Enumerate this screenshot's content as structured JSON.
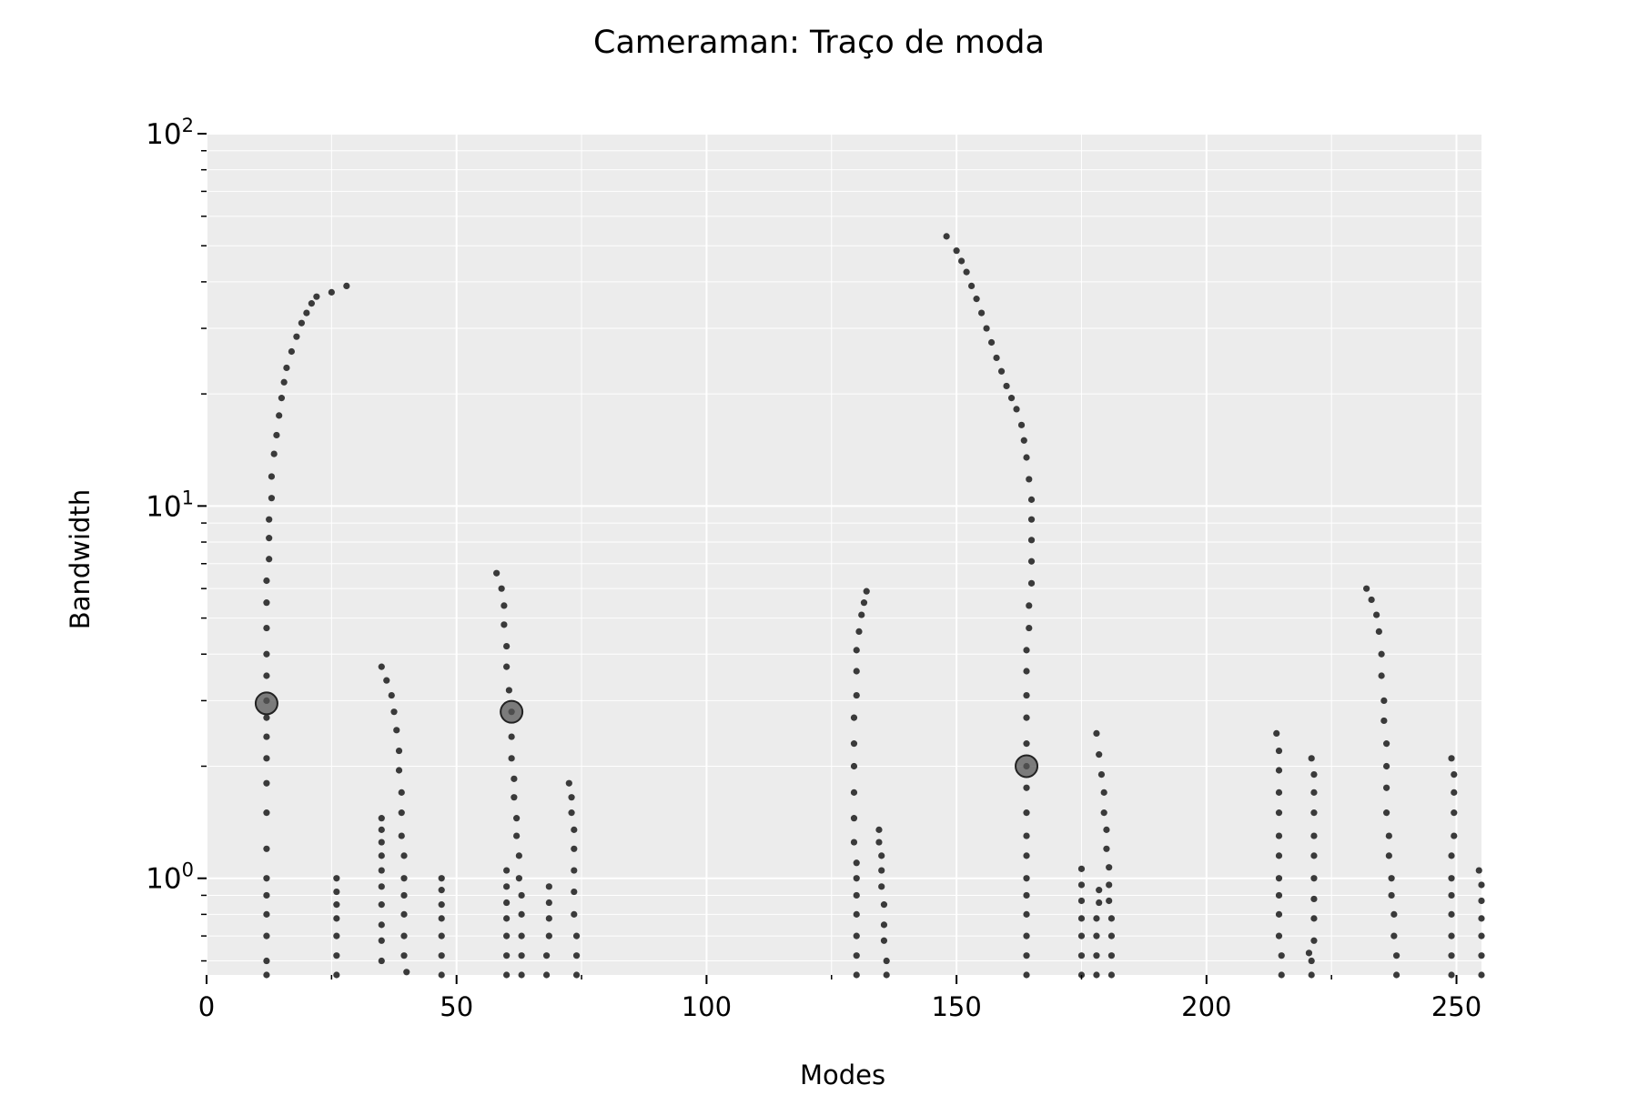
{
  "chart_data": {
    "type": "scatter",
    "title": "Cameraman: Traço de moda",
    "xlabel": "Modes",
    "ylabel": "Bandwidth",
    "xlim": [
      0,
      255
    ],
    "ylim": [
      0.55,
      100
    ],
    "y_scale": "log",
    "grid": true,
    "legend": "none",
    "x_ticks": [
      0,
      50,
      100,
      150,
      200,
      250
    ],
    "y_ticks": [
      {
        "value": 1,
        "base": "10",
        "exp": "0"
      },
      {
        "value": 10,
        "base": "10",
        "exp": "1"
      },
      {
        "value": 100,
        "base": "10",
        "exp": "2"
      }
    ],
    "colors": {
      "points": "#3a3a3a",
      "highlight": "#555555",
      "background": "#ececec",
      "grid": "#ffffff"
    },
    "traces": [
      {
        "pts": [
          [
            12,
            0.55
          ],
          [
            12,
            0.6
          ],
          [
            12,
            0.7
          ],
          [
            12,
            0.8
          ],
          [
            12,
            0.9
          ],
          [
            12,
            1.0
          ],
          [
            12,
            1.2
          ],
          [
            12,
            1.5
          ],
          [
            12,
            1.8
          ],
          [
            12,
            2.1
          ],
          [
            12,
            2.4
          ],
          [
            12,
            2.7
          ],
          [
            12,
            3.0
          ],
          [
            12,
            3.5
          ],
          [
            12,
            4.0
          ],
          [
            12,
            4.7
          ],
          [
            12,
            5.5
          ],
          [
            12,
            6.3
          ],
          [
            12.5,
            7.2
          ],
          [
            12.5,
            8.2
          ],
          [
            12.5,
            9.2
          ],
          [
            13,
            10.5
          ],
          [
            13,
            12
          ],
          [
            13.5,
            13.8
          ],
          [
            14,
            15.5
          ],
          [
            14.5,
            17.5
          ],
          [
            15,
            19.5
          ],
          [
            15.5,
            21.5
          ],
          [
            16,
            23.5
          ],
          [
            17,
            26
          ],
          [
            18,
            28.5
          ],
          [
            19,
            31
          ],
          [
            20,
            33
          ],
          [
            21,
            35
          ],
          [
            22,
            36.5
          ],
          [
            25,
            37.5
          ],
          [
            28,
            39
          ]
        ]
      },
      {
        "pts": [
          [
            26,
            0.55
          ],
          [
            26,
            0.62
          ],
          [
            26,
            0.7
          ],
          [
            26,
            0.78
          ],
          [
            26,
            0.85
          ],
          [
            26,
            0.92
          ],
          [
            26,
            1.0
          ]
        ]
      },
      {
        "pts": [
          [
            35,
            0.6
          ],
          [
            35,
            0.68
          ],
          [
            35,
            0.75
          ],
          [
            35,
            0.85
          ],
          [
            35,
            0.95
          ],
          [
            35,
            1.05
          ],
          [
            35,
            1.15
          ],
          [
            35,
            1.25
          ],
          [
            35,
            1.35
          ],
          [
            35,
            1.45
          ]
        ]
      },
      {
        "pts": [
          [
            40,
            0.56
          ],
          [
            39.5,
            0.62
          ],
          [
            39.5,
            0.7
          ],
          [
            39.5,
            0.8
          ],
          [
            39.5,
            0.9
          ],
          [
            39.5,
            1.0
          ],
          [
            39.5,
            1.15
          ],
          [
            39,
            1.3
          ],
          [
            39,
            1.5
          ],
          [
            39,
            1.7
          ],
          [
            38.5,
            1.95
          ],
          [
            38.5,
            2.2
          ],
          [
            38,
            2.5
          ],
          [
            37.5,
            2.8
          ],
          [
            37,
            3.1
          ],
          [
            36,
            3.4
          ],
          [
            35,
            3.7
          ]
        ]
      },
      {
        "pts": [
          [
            47,
            0.55
          ],
          [
            47,
            0.62
          ],
          [
            47,
            0.7
          ],
          [
            47,
            0.78
          ],
          [
            47,
            0.85
          ],
          [
            47,
            0.93
          ],
          [
            47,
            1.0
          ]
        ]
      },
      {
        "pts": [
          [
            60,
            0.55
          ],
          [
            60,
            0.62
          ],
          [
            60,
            0.7
          ],
          [
            60,
            0.78
          ],
          [
            60,
            0.86
          ],
          [
            60,
            0.95
          ],
          [
            60,
            1.05
          ]
        ]
      },
      {
        "pts": [
          [
            63,
            0.55
          ],
          [
            63,
            0.62
          ],
          [
            63,
            0.7
          ],
          [
            63,
            0.8
          ],
          [
            63,
            0.9
          ],
          [
            62.5,
            1.0
          ],
          [
            62.5,
            1.15
          ],
          [
            62,
            1.3
          ],
          [
            62,
            1.45
          ],
          [
            61.5,
            1.65
          ],
          [
            61.5,
            1.85
          ],
          [
            61,
            2.1
          ],
          [
            61,
            2.4
          ],
          [
            61,
            2.8
          ],
          [
            60.5,
            3.2
          ],
          [
            60,
            3.7
          ],
          [
            60,
            4.2
          ],
          [
            59.5,
            4.8
          ],
          [
            59.5,
            5.4
          ],
          [
            59,
            6.0
          ],
          [
            58,
            6.6
          ]
        ]
      },
      {
        "pts": [
          [
            68,
            0.55
          ],
          [
            68,
            0.62
          ],
          [
            68.5,
            0.7
          ],
          [
            68.5,
            0.78
          ],
          [
            68.5,
            0.86
          ],
          [
            68.5,
            0.95
          ]
        ]
      },
      {
        "pts": [
          [
            74,
            0.55
          ],
          [
            74,
            0.62
          ],
          [
            74,
            0.7
          ],
          [
            73.5,
            0.8
          ],
          [
            73.5,
            0.92
          ],
          [
            73.5,
            1.05
          ],
          [
            73.5,
            1.2
          ],
          [
            73.5,
            1.35
          ],
          [
            73,
            1.5
          ],
          [
            73,
            1.65
          ],
          [
            72.5,
            1.8
          ]
        ]
      },
      {
        "pts": [
          [
            130,
            0.55
          ],
          [
            130,
            0.62
          ],
          [
            130,
            0.7
          ],
          [
            130,
            0.8
          ],
          [
            130,
            0.9
          ],
          [
            130,
            1.0
          ],
          [
            130,
            1.1
          ],
          [
            129.5,
            1.25
          ],
          [
            129.5,
            1.45
          ],
          [
            129.5,
            1.7
          ],
          [
            129.5,
            2.0
          ],
          [
            129.5,
            2.3
          ],
          [
            129.5,
            2.7
          ],
          [
            130,
            3.1
          ],
          [
            130,
            3.6
          ],
          [
            130,
            4.1
          ],
          [
            130.5,
            4.6
          ],
          [
            131,
            5.1
          ],
          [
            131.5,
            5.5
          ],
          [
            132,
            5.9
          ]
        ]
      },
      {
        "pts": [
          [
            136,
            0.55
          ],
          [
            136,
            0.6
          ],
          [
            135.5,
            0.68
          ],
          [
            135.5,
            0.75
          ],
          [
            135.5,
            0.85
          ],
          [
            135,
            0.95
          ],
          [
            135,
            1.05
          ],
          [
            135,
            1.15
          ],
          [
            134.5,
            1.25
          ],
          [
            134.5,
            1.35
          ]
        ]
      },
      {
        "pts": [
          [
            164,
            0.55
          ],
          [
            164,
            0.62
          ],
          [
            164,
            0.7
          ],
          [
            164,
            0.8
          ],
          [
            164,
            0.9
          ],
          [
            164,
            1.0
          ],
          [
            164,
            1.15
          ],
          [
            164,
            1.3
          ],
          [
            164,
            1.5
          ],
          [
            164,
            1.75
          ],
          [
            164,
            2.0
          ],
          [
            164,
            2.3
          ],
          [
            164,
            2.7
          ],
          [
            164,
            3.1
          ],
          [
            164,
            3.6
          ],
          [
            164,
            4.1
          ],
          [
            164.5,
            4.7
          ],
          [
            164.5,
            5.4
          ],
          [
            165,
            6.2
          ],
          [
            165,
            7.1
          ],
          [
            165,
            8.1
          ],
          [
            165,
            9.2
          ],
          [
            165,
            10.4
          ],
          [
            164.5,
            11.8
          ],
          [
            164,
            13.5
          ],
          [
            163.5,
            15
          ],
          [
            163,
            16.5
          ],
          [
            162,
            18.2
          ],
          [
            161,
            19.5
          ],
          [
            160,
            21
          ],
          [
            159,
            23
          ],
          [
            158,
            25
          ],
          [
            157,
            27.5
          ],
          [
            156,
            30
          ],
          [
            155,
            33
          ],
          [
            154,
            36
          ],
          [
            153,
            39
          ],
          [
            152,
            42.5
          ],
          [
            151,
            45.5
          ],
          [
            150,
            48.5
          ],
          [
            148,
            53
          ]
        ]
      },
      {
        "pts": [
          [
            175,
            0.55
          ],
          [
            175,
            0.62
          ],
          [
            175,
            0.7
          ],
          [
            175,
            0.78
          ],
          [
            175,
            0.87
          ],
          [
            175,
            0.96
          ],
          [
            175,
            1.06
          ]
        ]
      },
      {
        "pts": [
          [
            178,
            0.55
          ],
          [
            178,
            0.62
          ],
          [
            178,
            0.7
          ],
          [
            178,
            0.78
          ],
          [
            178.5,
            0.86
          ],
          [
            178.5,
            0.93
          ]
        ]
      },
      {
        "pts": [
          [
            181,
            0.55
          ],
          [
            181,
            0.62
          ],
          [
            181,
            0.7
          ],
          [
            181,
            0.78
          ],
          [
            180.5,
            0.87
          ],
          [
            180.5,
            0.96
          ],
          [
            180.5,
            1.07
          ],
          [
            180,
            1.2
          ],
          [
            180,
            1.35
          ],
          [
            179.5,
            1.5
          ],
          [
            179.5,
            1.7
          ],
          [
            179,
            1.9
          ],
          [
            178.5,
            2.15
          ],
          [
            178,
            2.45
          ]
        ]
      },
      {
        "pts": [
          [
            215,
            0.55
          ],
          [
            215,
            0.62
          ],
          [
            214.5,
            0.7
          ],
          [
            214.5,
            0.8
          ],
          [
            214.5,
            0.9
          ],
          [
            214.5,
            1.0
          ],
          [
            214.5,
            1.15
          ],
          [
            214.5,
            1.3
          ],
          [
            214.5,
            1.5
          ],
          [
            214.5,
            1.7
          ],
          [
            214.5,
            1.95
          ],
          [
            214.5,
            2.2
          ],
          [
            214,
            2.45
          ]
        ]
      },
      {
        "pts": [
          [
            221,
            0.55
          ],
          [
            221,
            0.6
          ],
          [
            220.5,
            0.63
          ]
        ]
      },
      {
        "pts": [
          [
            221.5,
            0.68
          ],
          [
            221.5,
            0.78
          ],
          [
            221.5,
            0.88
          ],
          [
            221.5,
            1.0
          ],
          [
            221.5,
            1.15
          ],
          [
            221.5,
            1.3
          ],
          [
            221.5,
            1.5
          ],
          [
            221.5,
            1.7
          ],
          [
            221.5,
            1.9
          ],
          [
            221,
            2.1
          ]
        ]
      },
      {
        "pts": [
          [
            238,
            0.55
          ],
          [
            238,
            0.62
          ],
          [
            237.5,
            0.7
          ],
          [
            237.5,
            0.8
          ],
          [
            237,
            0.9
          ],
          [
            237,
            1.0
          ],
          [
            236.5,
            1.15
          ],
          [
            236.5,
            1.3
          ],
          [
            236,
            1.5
          ],
          [
            236,
            1.75
          ],
          [
            236,
            2.0
          ],
          [
            236,
            2.3
          ],
          [
            235.5,
            2.65
          ],
          [
            235.5,
            3.0
          ],
          [
            235,
            3.5
          ],
          [
            235,
            4.0
          ],
          [
            234.5,
            4.6
          ],
          [
            234,
            5.1
          ],
          [
            233,
            5.6
          ],
          [
            232,
            6.0
          ]
        ]
      },
      {
        "pts": [
          [
            249,
            0.55
          ],
          [
            249,
            0.62
          ],
          [
            249,
            0.7
          ],
          [
            249,
            0.8
          ],
          [
            249,
            0.9
          ],
          [
            249,
            1.0
          ],
          [
            249,
            1.15
          ],
          [
            249.5,
            1.3
          ],
          [
            249.5,
            1.5
          ],
          [
            249.5,
            1.7
          ],
          [
            249.5,
            1.9
          ],
          [
            249,
            2.1
          ]
        ]
      },
      {
        "pts": [
          [
            255,
            0.55
          ],
          [
            255,
            0.62
          ],
          [
            255,
            0.7
          ],
          [
            255,
            0.78
          ],
          [
            255,
            0.87
          ],
          [
            255,
            0.96
          ],
          [
            254.5,
            1.05
          ]
        ]
      }
    ],
    "highlights": [
      {
        "x": 12,
        "y": 2.95
      },
      {
        "x": 61,
        "y": 2.8
      },
      {
        "x": 164,
        "y": 2.0
      }
    ]
  }
}
